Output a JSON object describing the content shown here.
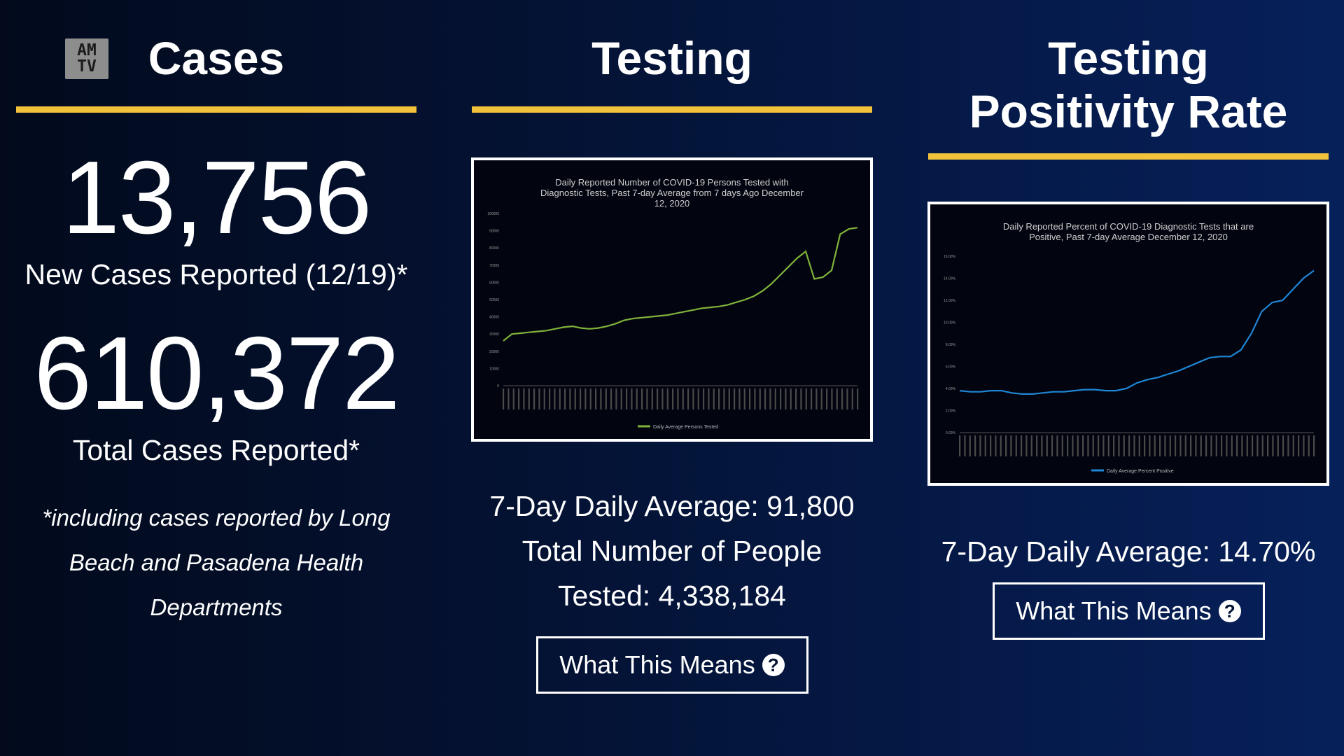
{
  "logo": {
    "line1": "AM",
    "line2": "TV"
  },
  "cases": {
    "heading": "Cases",
    "new_cases_value": "13,756",
    "new_cases_label": "New Cases Reported (12/19)*",
    "total_cases_value": "610,372",
    "total_cases_label": "Total Cases Reported*",
    "note": "*including cases reported by Long Beach and Pasadena Health Departments"
  },
  "testing": {
    "heading": "Testing",
    "stat_line1": "7-Day Daily Average: 91,800",
    "stat_line2": "Total Number of People",
    "stat_line3": "Tested: 4,338,184",
    "button_label": "What This Means",
    "button_icon": "question-circle-icon"
  },
  "positivity": {
    "heading_line1": "Testing",
    "heading_line2": "Positivity Rate",
    "stat_line1": "7-Day Daily Average: 14.70%",
    "button_label": "What This Means",
    "button_icon": "question-circle-icon"
  },
  "colors": {
    "accent_rule": "#f2c23b",
    "testing_line": "#7fb33a",
    "positivity_line": "#1f86d6"
  },
  "chart_data": [
    {
      "type": "line",
      "title": "Daily Reported Number of COVID-19 Persons Tested with Diagnostic Tests, Past 7-day Average from 7 days Ago December 12, 2020",
      "ylim": [
        0,
        100000
      ],
      "yticks": [
        "0",
        "10000",
        "20000",
        "30000",
        "40000",
        "50000",
        "60000",
        "70000",
        "80000",
        "90000",
        "100000"
      ],
      "series": [
        {
          "name": "Daily Average Persons Tested",
          "values": [
            26000,
            30000,
            30500,
            31000,
            31500,
            32000,
            33000,
            34000,
            34500,
            33500,
            33000,
            33500,
            34500,
            36000,
            38000,
            39000,
            39500,
            40000,
            40500,
            41000,
            42000,
            43000,
            44000,
            45000,
            45500,
            46000,
            47000,
            48500,
            50000,
            52000,
            55000,
            59000,
            64000,
            69000,
            74000,
            78000,
            62000,
            63000,
            67000,
            88000,
            91000,
            91800
          ]
        }
      ]
    },
    {
      "type": "line",
      "title": "Daily Reported Percent of COVID-19 Diagnostic Tests that are Positive, Past 7-day Average December 12, 2020",
      "ylim": [
        0,
        16
      ],
      "yticks": [
        "0.00%",
        "2.00%",
        "4.00%",
        "6.00%",
        "8.00%",
        "10.00%",
        "12.00%",
        "14.00%",
        "16.00%"
      ],
      "series": [
        {
          "name": "Daily Average Percent Positive",
          "values": [
            3.8,
            3.7,
            3.7,
            3.8,
            3.8,
            3.6,
            3.5,
            3.5,
            3.6,
            3.7,
            3.7,
            3.8,
            3.9,
            3.9,
            3.8,
            3.8,
            4.0,
            4.5,
            4.8,
            5.0,
            5.3,
            5.6,
            6.0,
            6.4,
            6.8,
            6.9,
            6.9,
            7.5,
            9.0,
            11.0,
            11.8,
            12.0,
            13.0,
            14.0,
            14.7
          ]
        }
      ]
    }
  ]
}
